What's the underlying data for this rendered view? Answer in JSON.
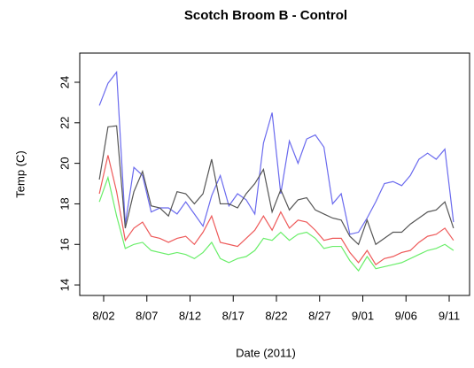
{
  "chart_data": {
    "type": "line",
    "title": "Scotch Broom B - Control",
    "xlabel": "Date (2011)",
    "ylabel": "Temp (C)",
    "x": [
      1.5,
      2.5,
      3.5,
      4.5,
      5.5,
      6.5,
      7.5,
      8.5,
      9.5,
      10.5,
      11.5,
      12.5,
      13.5,
      14.5,
      15.5,
      16.5,
      17.5,
      18.5,
      19.5,
      20.5,
      21.5,
      22.5,
      23.5,
      24.5,
      25.5,
      26.5,
      27.5,
      28.5,
      29.5,
      30.5,
      31.5,
      32.5,
      33.5,
      34.5,
      35.5,
      36.5,
      37.5,
      38.5,
      39.5,
      40.5,
      41.5,
      42.5
    ],
    "series": [
      {
        "color": "#6a6aee",
        "values": [
          22.85,
          23.95,
          24.5,
          17.0,
          19.8,
          19.4,
          17.6,
          17.8,
          17.8,
          17.5,
          18.1,
          17.5,
          16.9,
          18.4,
          19.4,
          17.9,
          18.5,
          18.2,
          17.5,
          21.0,
          22.5,
          18.5,
          21.1,
          20.0,
          21.2,
          21.4,
          20.8,
          18.0,
          18.5,
          16.5,
          16.6,
          17.3,
          18.1,
          19.0,
          19.1,
          18.9,
          19.4,
          20.2,
          20.5,
          20.2,
          20.7,
          17.1
        ]
      },
      {
        "color": "#555555",
        "values": [
          19.2,
          21.8,
          21.85,
          16.8,
          18.6,
          19.6,
          17.9,
          17.8,
          17.4,
          18.6,
          18.5,
          18.0,
          18.5,
          20.2,
          18.0,
          18.0,
          17.8,
          18.5,
          19.0,
          19.7,
          17.6,
          18.7,
          17.7,
          18.2,
          18.3,
          17.7,
          17.5,
          17.3,
          17.2,
          16.4,
          16.0,
          17.2,
          16.0,
          16.3,
          16.6,
          16.6,
          17.0,
          17.3,
          17.6,
          17.7,
          18.1,
          16.8
        ]
      },
      {
        "color": "#ee5a5a",
        "values": [
          18.5,
          20.4,
          18.6,
          16.2,
          16.8,
          17.1,
          16.4,
          16.3,
          16.1,
          16.3,
          16.4,
          16.0,
          16.6,
          17.4,
          16.1,
          16.0,
          15.9,
          16.3,
          16.7,
          17.4,
          16.7,
          17.6,
          16.8,
          17.2,
          17.1,
          16.7,
          16.2,
          16.3,
          16.3,
          15.6,
          15.1,
          15.7,
          15.0,
          15.3,
          15.4,
          15.6,
          15.7,
          16.1,
          16.4,
          16.5,
          16.8,
          16.2
        ]
      },
      {
        "color": "#6aee6a",
        "values": [
          18.1,
          19.3,
          17.4,
          15.8,
          16.0,
          16.1,
          15.7,
          15.6,
          15.5,
          15.6,
          15.5,
          15.3,
          15.6,
          16.1,
          15.3,
          15.1,
          15.3,
          15.4,
          15.7,
          16.3,
          16.2,
          16.6,
          16.2,
          16.5,
          16.6,
          16.3,
          15.8,
          15.9,
          15.9,
          15.2,
          14.7,
          15.4,
          14.8,
          14.9,
          15.0,
          15.1,
          15.3,
          15.5,
          15.7,
          15.8,
          16.0,
          15.7
        ]
      }
    ],
    "xlim": [
      -0.77,
      44.36
    ],
    "xticks": [
      {
        "value": 2,
        "label": "8/02"
      },
      {
        "value": 7,
        "label": "8/07"
      },
      {
        "value": 12,
        "label": "8/12"
      },
      {
        "value": 17,
        "label": "8/17"
      },
      {
        "value": 22,
        "label": "8/22"
      },
      {
        "value": 27,
        "label": "8/27"
      },
      {
        "value": 32,
        "label": "9/01"
      },
      {
        "value": 37,
        "label": "9/06"
      },
      {
        "value": 42,
        "label": "9/11"
      }
    ],
    "ylim": [
      13.48,
      25.44
    ],
    "yticks": [
      14,
      16,
      18,
      20,
      22,
      24
    ]
  }
}
